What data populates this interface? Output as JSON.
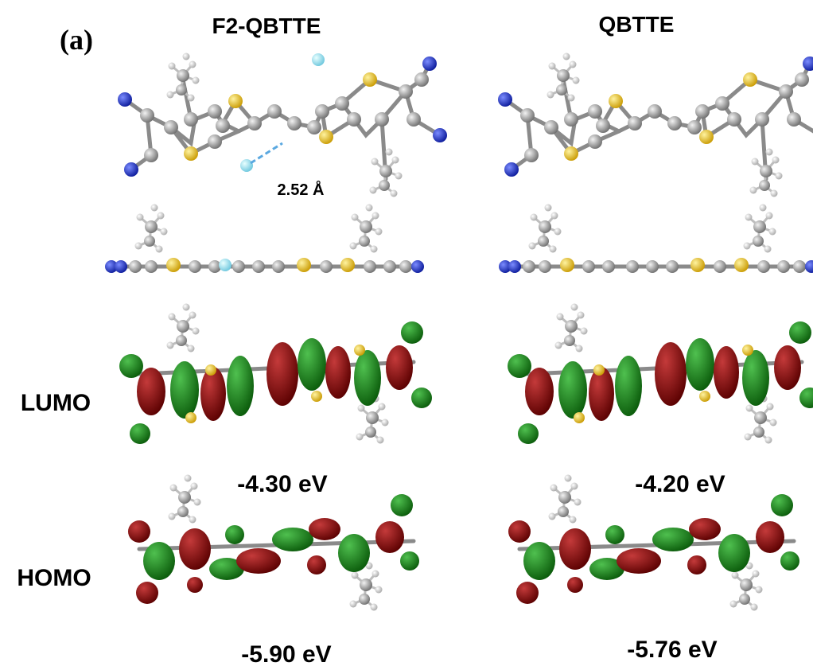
{
  "figure": {
    "panel_label": "(a)",
    "columns": [
      "F2-QBTTE",
      "QBTTE"
    ],
    "distance_label": "2.52 Å",
    "rows": [
      "LUMO",
      "HOMO"
    ],
    "energies": {
      "lumo": [
        "-4.30 eV",
        "-4.20 eV"
      ],
      "homo": [
        "-5.90 eV",
        "-5.76 eV"
      ]
    }
  }
}
